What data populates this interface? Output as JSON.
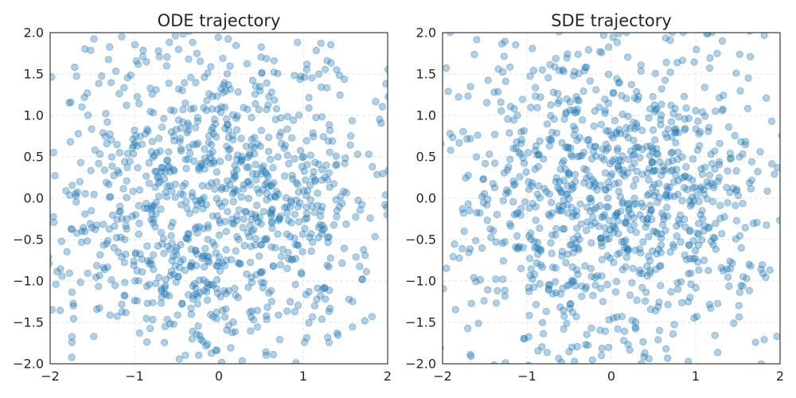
{
  "chart_data": [
    {
      "type": "scatter",
      "title": "ODE trajectory",
      "xlabel": "",
      "ylabel": "",
      "xlim": [
        -2,
        2
      ],
      "ylim": [
        -2,
        2
      ],
      "xticks": [
        -2,
        -1,
        0,
        1,
        2
      ],
      "xtick_labels": [
        "−2",
        "−1",
        "0",
        "1",
        "2"
      ],
      "yticks": [
        -2.0,
        -1.5,
        -1.0,
        -0.5,
        0.0,
        0.5,
        1.0,
        1.5,
        2.0
      ],
      "ytick_labels": [
        "−2.0",
        "−1.5",
        "−1.0",
        "−0.5",
        "0.0",
        "0.5",
        "1.0",
        "1.5",
        "2.0"
      ],
      "grid": true,
      "point_color": "#1f77b4",
      "point_alpha": 0.35,
      "point_count": 1000,
      "distribution": "approx. standard normal, clipped to axis range",
      "sample_seed": 7
    },
    {
      "type": "scatter",
      "title": "SDE trajectory",
      "xlabel": "",
      "ylabel": "",
      "xlim": [
        -2,
        2
      ],
      "ylim": [
        -2,
        2
      ],
      "xticks": [
        -2,
        -1,
        0,
        1,
        2
      ],
      "xtick_labels": [
        "−2",
        "−1",
        "0",
        "1",
        "2"
      ],
      "yticks": [
        -2.0,
        -1.5,
        -1.0,
        -0.5,
        0.0,
        0.5,
        1.0,
        1.5,
        2.0
      ],
      "ytick_labels": [
        "−2.0",
        "−1.5",
        "−1.0",
        "−0.5",
        "0.0",
        "0.5",
        "1.0",
        "1.5",
        "2.0"
      ],
      "grid": true,
      "point_color": "#1f77b4",
      "point_alpha": 0.35,
      "point_count": 1000,
      "distribution": "approx. standard normal, clipped to axis range",
      "sample_seed": 23
    }
  ]
}
